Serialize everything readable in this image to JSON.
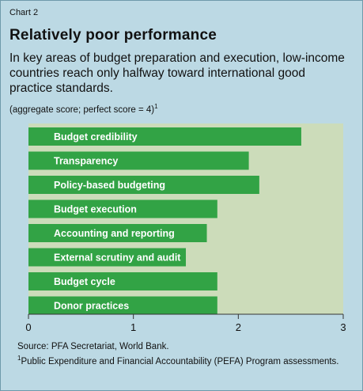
{
  "header": {
    "chart_label": "Chart 2",
    "title": "Relatively poor performance",
    "subtitle": "In key areas of budget preparation and execution, low-income countries reach only halfway toward international good practice standards.",
    "note": "(aggregate score; perfect score = 4)",
    "note_mark": "1"
  },
  "footer": {
    "source": "Source: PFA Secretariat, World Bank.",
    "footnote_mark": "1",
    "footnote": "Public Expenditure and Financial Accountability (PEFA) Program assessments."
  },
  "colors": {
    "background": "#bcd9e4",
    "plot_area": "#ccdcba",
    "bar": "#32a345",
    "bar_text": "#ffffff"
  },
  "chart_data": {
    "type": "bar",
    "orientation": "horizontal",
    "categories": [
      "Budget credibility",
      "Transparency",
      "Policy-based budgeting",
      "Budget execution",
      "Accounting and reporting",
      "External scrutiny and audit",
      "Budget cycle",
      "Donor practices"
    ],
    "values": [
      2.6,
      2.1,
      2.2,
      1.8,
      1.7,
      1.5,
      1.8,
      1.8
    ],
    "xlim": [
      0,
      3
    ],
    "xticks": [
      "0",
      "1",
      "2",
      "3"
    ],
    "grid": false,
    "legend": "none"
  }
}
